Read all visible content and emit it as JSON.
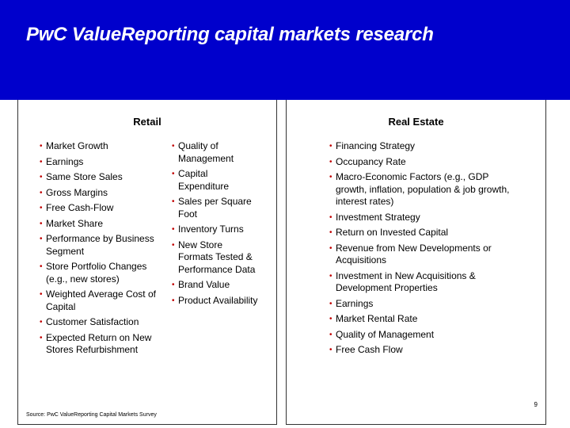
{
  "title": "PwC ValueReporting capital markets research",
  "colors": {
    "banner": "#0000cc",
    "bullet": "#c00000",
    "title_text": "#ffffff"
  },
  "retail": {
    "heading": "Retail",
    "column1": [
      "Market Growth",
      "Earnings",
      "Same Store Sales",
      "Gross Margins",
      "Free Cash-Flow",
      "Market Share",
      "Performance by Business Segment",
      "Store Portfolio Changes (e.g., new stores)",
      "Weighted Average Cost of Capital",
      "Customer Satisfaction",
      "Expected Return on New Stores Refurbishment"
    ],
    "column2": [
      "Quality of Management",
      "Capital Expenditure",
      "Sales per Square Foot",
      "Inventory Turns",
      "New Store Formats Tested & Performance Data",
      "Brand Value",
      "Product Availability"
    ],
    "source": "Source: PwC ValueReporting Capital Markets Survey"
  },
  "real_estate": {
    "heading": "Real Estate",
    "items": [
      "Financing Strategy",
      "Occupancy Rate",
      "Macro-Economic Factors (e.g., GDP growth, inflation, population & job growth, interest rates)",
      "Investment Strategy",
      "Return on Invested Capital",
      "Revenue from New Developments or Acquisitions",
      "Investment in New Acquisitions & Development Properties",
      "Earnings",
      "Market Rental Rate",
      "Quality of Management",
      "Free Cash Flow"
    ],
    "page_number": "9"
  }
}
